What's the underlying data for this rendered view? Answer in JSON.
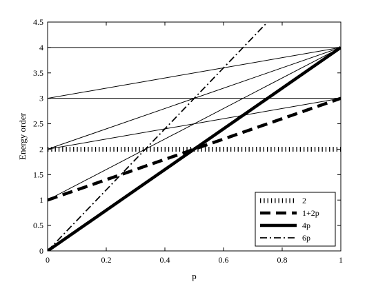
{
  "chart_data": {
    "type": "line",
    "xlabel": "p",
    "ylabel": "Energy order",
    "xlim": [
      0,
      1
    ],
    "ylim": [
      0,
      4.5
    ],
    "x_ticks": [
      0,
      0.2,
      0.4,
      0.6,
      0.8,
      1
    ],
    "x_tick_labels": [
      "0",
      "0.2",
      "0.4",
      "0.6",
      "0.8",
      "1"
    ],
    "y_ticks": [
      0,
      0.5,
      1,
      1.5,
      2,
      2.5,
      3,
      3.5,
      4,
      4.5
    ],
    "y_tick_labels": [
      "0",
      "0.5",
      "1",
      "1.5",
      "2",
      "2.5",
      "3",
      "3.5",
      "4",
      "4.5"
    ],
    "grid": false,
    "legend_position": "bottom-right",
    "series": [
      {
        "name": "2",
        "style": "dotted",
        "x": [
          0,
          1
        ],
        "y": [
          2,
          2
        ]
      },
      {
        "name": "1+2p",
        "style": "dashed",
        "x": [
          0,
          1
        ],
        "y": [
          1,
          3
        ]
      },
      {
        "name": "4p",
        "style": "solid-thick",
        "x": [
          0,
          1
        ],
        "y": [
          0,
          4
        ]
      },
      {
        "name": "6p",
        "style": "dashdot",
        "x": [
          0,
          0.75
        ],
        "y": [
          0,
          4.5
        ]
      }
    ],
    "reference_lines": [
      {
        "x": [
          0,
          1
        ],
        "y": [
          4,
          4
        ]
      },
      {
        "x": [
          0,
          1
        ],
        "y": [
          3,
          3
        ]
      },
      {
        "x": [
          0,
          1
        ],
        "y": [
          3,
          4
        ]
      },
      {
        "x": [
          0,
          1
        ],
        "y": [
          2,
          4
        ]
      },
      {
        "x": [
          0,
          1
        ],
        "y": [
          2,
          3
        ]
      },
      {
        "x": [
          0,
          1
        ],
        "y": [
          1,
          4
        ]
      }
    ]
  }
}
